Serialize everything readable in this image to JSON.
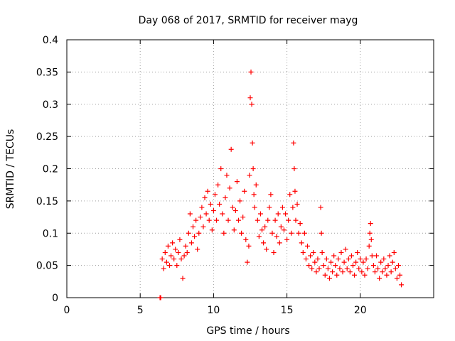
{
  "chart_data": {
    "type": "scatter",
    "title": "Day 068 of 2017, SRMTID for receiver mayg",
    "xlabel": "GPS time / hours",
    "ylabel": "SRMTID / TECUs",
    "xlim": [
      0,
      25
    ],
    "ylim": [
      0,
      0.4
    ],
    "grid": true,
    "x_ticks": [
      0,
      5,
      10,
      15,
      20
    ],
    "x_tick_labels": [
      "0",
      "5",
      "10",
      "15",
      "20"
    ],
    "y_ticks": [
      0,
      0.05,
      0.1,
      0.15,
      0.2,
      0.25,
      0.3,
      0.35,
      0.4
    ],
    "y_tick_labels": [
      "0",
      "0.05",
      "0.1",
      "0.15",
      "0.2",
      "0.25",
      "0.3",
      "0.35",
      "0.4"
    ],
    "marker": "+",
    "series": [
      {
        "name": "SRMTID",
        "color": "#ff0000",
        "points": [
          [
            6.35,
            0.0
          ],
          [
            6.4,
            0.0
          ],
          [
            6.5,
            0.06
          ],
          [
            6.6,
            0.045
          ],
          [
            6.7,
            0.07
          ],
          [
            6.8,
            0.055
          ],
          [
            6.9,
            0.08
          ],
          [
            7.0,
            0.05
          ],
          [
            7.1,
            0.065
          ],
          [
            7.2,
            0.085
          ],
          [
            7.3,
            0.06
          ],
          [
            7.4,
            0.075
          ],
          [
            7.5,
            0.05
          ],
          [
            7.6,
            0.07
          ],
          [
            7.7,
            0.09
          ],
          [
            7.8,
            0.06
          ],
          [
            7.9,
            0.03
          ],
          [
            8.0,
            0.065
          ],
          [
            8.1,
            0.08
          ],
          [
            8.2,
            0.07
          ],
          [
            8.3,
            0.1
          ],
          [
            8.4,
            0.13
          ],
          [
            8.5,
            0.085
          ],
          [
            8.6,
            0.11
          ],
          [
            8.7,
            0.095
          ],
          [
            8.8,
            0.12
          ],
          [
            8.9,
            0.075
          ],
          [
            9.0,
            0.1
          ],
          [
            9.1,
            0.125
          ],
          [
            9.2,
            0.14
          ],
          [
            9.3,
            0.11
          ],
          [
            9.4,
            0.155
          ],
          [
            9.5,
            0.13
          ],
          [
            9.6,
            0.165
          ],
          [
            9.7,
            0.12
          ],
          [
            9.8,
            0.145
          ],
          [
            9.9,
            0.105
          ],
          [
            10.0,
            0.135
          ],
          [
            10.1,
            0.16
          ],
          [
            10.2,
            0.12
          ],
          [
            10.3,
            0.175
          ],
          [
            10.4,
            0.145
          ],
          [
            10.5,
            0.2
          ],
          [
            10.6,
            0.13
          ],
          [
            10.7,
            0.1
          ],
          [
            10.8,
            0.155
          ],
          [
            10.9,
            0.19
          ],
          [
            11.0,
            0.12
          ],
          [
            11.1,
            0.17
          ],
          [
            11.2,
            0.23
          ],
          [
            11.3,
            0.14
          ],
          [
            11.4,
            0.105
          ],
          [
            11.5,
            0.135
          ],
          [
            11.6,
            0.18
          ],
          [
            11.7,
            0.12
          ],
          [
            11.8,
            0.15
          ],
          [
            11.9,
            0.1
          ],
          [
            12.0,
            0.125
          ],
          [
            12.1,
            0.165
          ],
          [
            12.2,
            0.09
          ],
          [
            12.3,
            0.055
          ],
          [
            12.4,
            0.08
          ],
          [
            12.45,
            0.19
          ],
          [
            12.5,
            0.31
          ],
          [
            12.55,
            0.35
          ],
          [
            12.6,
            0.3
          ],
          [
            12.65,
            0.24
          ],
          [
            12.7,
            0.2
          ],
          [
            12.75,
            0.16
          ],
          [
            12.8,
            0.14
          ],
          [
            12.9,
            0.175
          ],
          [
            13.0,
            0.12
          ],
          [
            13.1,
            0.095
          ],
          [
            13.2,
            0.13
          ],
          [
            13.3,
            0.105
          ],
          [
            13.4,
            0.085
          ],
          [
            13.5,
            0.11
          ],
          [
            13.6,
            0.075
          ],
          [
            13.7,
            0.12
          ],
          [
            13.8,
            0.14
          ],
          [
            13.9,
            0.16
          ],
          [
            14.0,
            0.1
          ],
          [
            14.1,
            0.07
          ],
          [
            14.2,
            0.12
          ],
          [
            14.3,
            0.095
          ],
          [
            14.4,
            0.13
          ],
          [
            14.5,
            0.085
          ],
          [
            14.6,
            0.11
          ],
          [
            14.7,
            0.14
          ],
          [
            14.8,
            0.105
          ],
          [
            14.9,
            0.13
          ],
          [
            15.0,
            0.09
          ],
          [
            15.1,
            0.12
          ],
          [
            15.2,
            0.16
          ],
          [
            15.3,
            0.1
          ],
          [
            15.4,
            0.14
          ],
          [
            15.45,
            0.24
          ],
          [
            15.5,
            0.2
          ],
          [
            15.55,
            0.165
          ],
          [
            15.6,
            0.12
          ],
          [
            15.7,
            0.145
          ],
          [
            15.8,
            0.1
          ],
          [
            15.9,
            0.115
          ],
          [
            16.0,
            0.085
          ],
          [
            16.1,
            0.07
          ],
          [
            16.2,
            0.1
          ],
          [
            16.3,
            0.06
          ],
          [
            16.4,
            0.08
          ],
          [
            16.5,
            0.05
          ],
          [
            16.6,
            0.065
          ],
          [
            16.7,
            0.045
          ],
          [
            16.8,
            0.07
          ],
          [
            16.9,
            0.055
          ],
          [
            17.0,
            0.04
          ],
          [
            17.1,
            0.06
          ],
          [
            17.2,
            0.045
          ],
          [
            17.3,
            0.14
          ],
          [
            17.35,
            0.1
          ],
          [
            17.4,
            0.07
          ],
          [
            17.5,
            0.05
          ],
          [
            17.6,
            0.035
          ],
          [
            17.7,
            0.06
          ],
          [
            17.8,
            0.045
          ],
          [
            17.9,
            0.03
          ],
          [
            18.0,
            0.055
          ],
          [
            18.1,
            0.04
          ],
          [
            18.2,
            0.065
          ],
          [
            18.3,
            0.05
          ],
          [
            18.4,
            0.035
          ],
          [
            18.5,
            0.06
          ],
          [
            18.6,
            0.045
          ],
          [
            18.7,
            0.07
          ],
          [
            18.8,
            0.04
          ],
          [
            18.9,
            0.055
          ],
          [
            19.0,
            0.075
          ],
          [
            19.1,
            0.045
          ],
          [
            19.2,
            0.06
          ],
          [
            19.3,
            0.04
          ],
          [
            19.4,
            0.065
          ],
          [
            19.5,
            0.05
          ],
          [
            19.6,
            0.035
          ],
          [
            19.7,
            0.055
          ],
          [
            19.8,
            0.07
          ],
          [
            19.9,
            0.045
          ],
          [
            20.0,
            0.06
          ],
          [
            20.1,
            0.04
          ],
          [
            20.2,
            0.055
          ],
          [
            20.3,
            0.035
          ],
          [
            20.4,
            0.06
          ],
          [
            20.5,
            0.045
          ],
          [
            20.6,
            0.08
          ],
          [
            20.65,
            0.1
          ],
          [
            20.7,
            0.115
          ],
          [
            20.75,
            0.09
          ],
          [
            20.8,
            0.065
          ],
          [
            20.9,
            0.05
          ],
          [
            21.0,
            0.04
          ],
          [
            21.1,
            0.065
          ],
          [
            21.2,
            0.045
          ],
          [
            21.3,
            0.03
          ],
          [
            21.4,
            0.055
          ],
          [
            21.5,
            0.04
          ],
          [
            21.6,
            0.06
          ],
          [
            21.7,
            0.045
          ],
          [
            21.8,
            0.035
          ],
          [
            21.9,
            0.05
          ],
          [
            22.0,
            0.065
          ],
          [
            22.1,
            0.04
          ],
          [
            22.2,
            0.055
          ],
          [
            22.3,
            0.07
          ],
          [
            22.4,
            0.045
          ],
          [
            22.5,
            0.03
          ],
          [
            22.6,
            0.05
          ],
          [
            22.7,
            0.035
          ],
          [
            22.8,
            0.02
          ]
        ]
      }
    ]
  }
}
